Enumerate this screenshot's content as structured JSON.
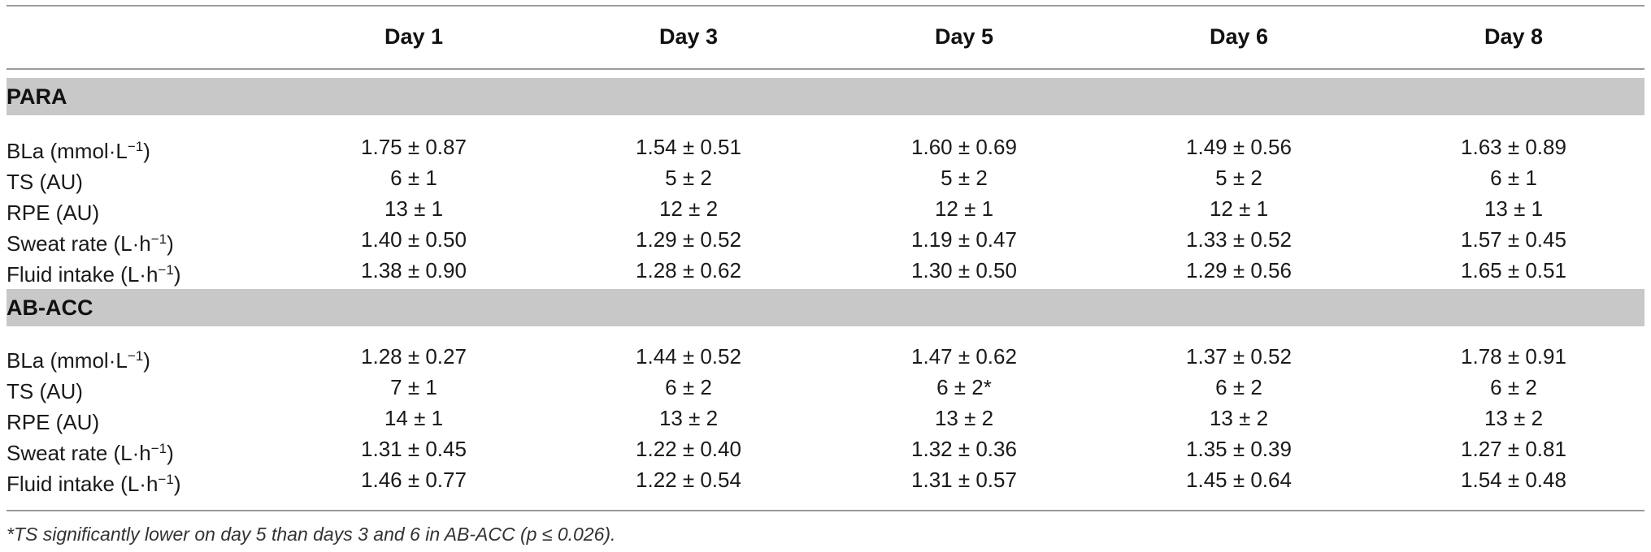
{
  "headers": [
    "Day 1",
    "Day 3",
    "Day 5",
    "Day 6",
    "Day 8"
  ],
  "groups": [
    {
      "name": "PARA",
      "rows": [
        {
          "label": "BLa (mmol·L",
          "sup": "−1",
          "close": ")",
          "values": [
            "1.75 ± 0.87",
            "1.54 ± 0.51",
            "1.60 ± 0.69",
            "1.49 ± 0.56",
            "1.63 ± 0.89"
          ]
        },
        {
          "label": "TS (AU)",
          "sup": "",
          "close": "",
          "values": [
            "6 ± 1",
            "5 ± 2",
            "5 ± 2",
            "5 ± 2",
            "6 ± 1"
          ]
        },
        {
          "label": "RPE (AU)",
          "sup": "",
          "close": "",
          "values": [
            "13 ± 1",
            "12 ± 2",
            "12 ± 1",
            "12 ± 1",
            "13 ± 1"
          ]
        },
        {
          "label": "Sweat rate (L·h",
          "sup": "−1",
          "close": ")",
          "values": [
            "1.40 ± 0.50",
            "1.29 ± 0.52",
            "1.19 ± 0.47",
            "1.33 ± 0.52",
            "1.57 ± 0.45"
          ]
        },
        {
          "label": "Fluid intake (L·h",
          "sup": "−1",
          "close": ")",
          "values": [
            "1.38 ± 0.90",
            "1.28 ± 0.62",
            "1.30 ± 0.50",
            "1.29 ± 0.56",
            "1.65 ± 0.51"
          ]
        }
      ]
    },
    {
      "name": "AB-ACC",
      "rows": [
        {
          "label": "BLa (mmol·L",
          "sup": "−1",
          "close": ")",
          "values": [
            "1.28 ± 0.27",
            "1.44 ± 0.52",
            "1.47 ± 0.62",
            "1.37 ± 0.52",
            "1.78 ± 0.91"
          ]
        },
        {
          "label": "TS (AU)",
          "sup": "",
          "close": "",
          "values": [
            "7 ± 1",
            "6 ± 2",
            "6 ± 2*",
            "6 ± 2",
            "6 ± 2"
          ]
        },
        {
          "label": "RPE (AU)",
          "sup": "",
          "close": "",
          "values": [
            "14 ± 1",
            "13 ± 2",
            "13 ± 2",
            "13 ± 2",
            "13 ± 2"
          ]
        },
        {
          "label": "Sweat rate (L·h",
          "sup": "−1",
          "close": ")",
          "values": [
            "1.31 ± 0.45",
            "1.22 ± 0.40",
            "1.32 ± 0.36",
            "1.35 ± 0.39",
            "1.27 ± 0.81"
          ]
        },
        {
          "label": "Fluid intake (L·h",
          "sup": "−1",
          "close": ")",
          "values": [
            "1.46 ± 0.77",
            "1.22 ± 0.54",
            "1.31 ± 0.57",
            "1.45 ± 0.64",
            "1.54 ± 0.48"
          ]
        }
      ]
    }
  ],
  "footnote": "*TS significantly lower on day 5 than days 3 and 6 in AB-ACC (p ≤ 0.026)."
}
